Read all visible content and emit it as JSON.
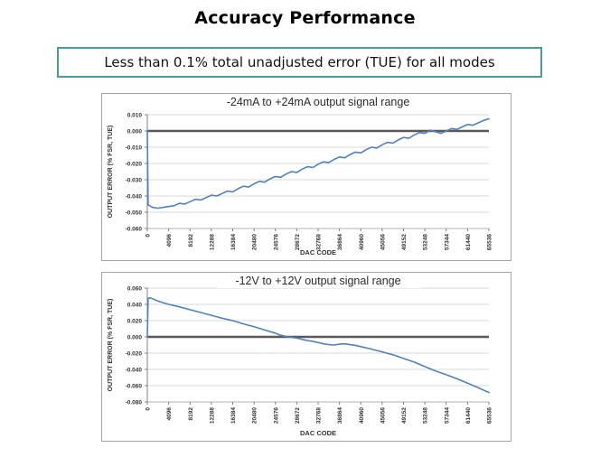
{
  "header": {
    "title": "Accuracy Performance"
  },
  "banner": {
    "text": "Less than 0.1% total unadjusted error (TUE) for all modes",
    "border_color": "#4a9c94"
  },
  "colors": {
    "series_blue": "#4f81bd",
    "zero_line": "#595959",
    "gridline": "#d9d9d9",
    "chart_border": "#a6a6a6",
    "tick_text": "#333333"
  },
  "chart_data": [
    {
      "type": "line",
      "title": "-24mA to +24mA output signal range",
      "xlabel": "DAC CODE",
      "ylabel": "OUTPUT ERROR (% FSR, TUE)",
      "xlim": [
        0,
        65536
      ],
      "ylim": [
        -0.06,
        0.01
      ],
      "ytick_step": 0.01,
      "xticks": [
        0,
        4096,
        8192,
        12288,
        16384,
        20480,
        24576,
        28672,
        32768,
        36864,
        40960,
        45056,
        49152,
        53248,
        57344,
        61440,
        65536
      ],
      "grid": "horizontal",
      "legend": "none",
      "zero_line": true,
      "line_color": "#4f81bd",
      "points": [
        [
          0,
          0.0
        ],
        [
          150,
          -0.0455
        ],
        [
          1024,
          -0.047
        ],
        [
          2048,
          -0.0475
        ],
        [
          3072,
          -0.047
        ],
        [
          4096,
          -0.0465
        ],
        [
          5120,
          -0.046
        ],
        [
          6144,
          -0.0445
        ],
        [
          7168,
          -0.045
        ],
        [
          8192,
          -0.0435
        ],
        [
          9216,
          -0.042
        ],
        [
          10240,
          -0.0425
        ],
        [
          11264,
          -0.041
        ],
        [
          12288,
          -0.0395
        ],
        [
          13312,
          -0.04
        ],
        [
          14336,
          -0.0385
        ],
        [
          15360,
          -0.037
        ],
        [
          16384,
          -0.0375
        ],
        [
          17408,
          -0.0355
        ],
        [
          18432,
          -0.034
        ],
        [
          19456,
          -0.0345
        ],
        [
          20480,
          -0.0325
        ],
        [
          21504,
          -0.031
        ],
        [
          22528,
          -0.0315
        ],
        [
          23552,
          -0.0295
        ],
        [
          24576,
          -0.028
        ],
        [
          25600,
          -0.0285
        ],
        [
          26624,
          -0.0265
        ],
        [
          27648,
          -0.025
        ],
        [
          28672,
          -0.0255
        ],
        [
          29696,
          -0.0235
        ],
        [
          30720,
          -0.022
        ],
        [
          31744,
          -0.0225
        ],
        [
          32768,
          -0.0205
        ],
        [
          33792,
          -0.019
        ],
        [
          34816,
          -0.0195
        ],
        [
          35840,
          -0.0175
        ],
        [
          36864,
          -0.016
        ],
        [
          37888,
          -0.0165
        ],
        [
          38912,
          -0.0145
        ],
        [
          39936,
          -0.013
        ],
        [
          40960,
          -0.0135
        ],
        [
          41984,
          -0.0115
        ],
        [
          43008,
          -0.01
        ],
        [
          44032,
          -0.0105
        ],
        [
          45056,
          -0.0085
        ],
        [
          46080,
          -0.007
        ],
        [
          47104,
          -0.0075
        ],
        [
          48128,
          -0.0055
        ],
        [
          49152,
          -0.004
        ],
        [
          50176,
          -0.0045
        ],
        [
          51200,
          -0.0025
        ],
        [
          52224,
          -0.001
        ],
        [
          53248,
          -0.0015
        ],
        [
          54272,
          0.0005
        ],
        [
          55296,
          -0.0005
        ],
        [
          56320,
          -0.0015
        ],
        [
          57344,
          0.0
        ],
        [
          58368,
          0.0015
        ],
        [
          59392,
          0.001
        ],
        [
          60416,
          0.0025
        ],
        [
          61440,
          0.004
        ],
        [
          62464,
          0.0035
        ],
        [
          63488,
          0.005
        ],
        [
          64512,
          0.0065
        ],
        [
          65536,
          0.0075
        ]
      ]
    },
    {
      "type": "line",
      "title": "-12V to +12V output signal range",
      "xlabel": "DAC CODE",
      "ylabel": "OUTPUT ERROR (% FSR, TUE)",
      "xlim": [
        0,
        65536
      ],
      "ylim": [
        -0.08,
        0.06
      ],
      "ytick_step": 0.02,
      "xticks": [
        0,
        4096,
        8192,
        12288,
        16384,
        20480,
        24576,
        28672,
        32768,
        36864,
        40960,
        45056,
        49152,
        53248,
        57344,
        61440,
        65536
      ],
      "grid": "horizontal",
      "legend": "none",
      "zero_line": true,
      "line_color": "#4f81bd",
      "points": [
        [
          0,
          0.0
        ],
        [
          150,
          0.0475
        ],
        [
          600,
          0.048
        ],
        [
          2048,
          0.044
        ],
        [
          4096,
          0.04
        ],
        [
          6144,
          0.037
        ],
        [
          8192,
          0.0335
        ],
        [
          10240,
          0.03
        ],
        [
          12288,
          0.0265
        ],
        [
          14336,
          0.023
        ],
        [
          16384,
          0.02
        ],
        [
          18432,
          0.016
        ],
        [
          20480,
          0.0125
        ],
        [
          22528,
          0.0085
        ],
        [
          24576,
          0.0045
        ],
        [
          25600,
          0.002
        ],
        [
          26624,
          0.0005
        ],
        [
          27648,
          -0.0005
        ],
        [
          28672,
          -0.0015
        ],
        [
          29696,
          -0.003
        ],
        [
          30720,
          -0.0045
        ],
        [
          31744,
          -0.0055
        ],
        [
          32768,
          -0.007
        ],
        [
          33792,
          -0.0085
        ],
        [
          34816,
          -0.0095
        ],
        [
          35840,
          -0.01
        ],
        [
          36864,
          -0.009
        ],
        [
          37888,
          -0.0085
        ],
        [
          38912,
          -0.0095
        ],
        [
          39936,
          -0.0105
        ],
        [
          40960,
          -0.012
        ],
        [
          43008,
          -0.015
        ],
        [
          45056,
          -0.0185
        ],
        [
          47104,
          -0.022
        ],
        [
          49152,
          -0.0265
        ],
        [
          51200,
          -0.031
        ],
        [
          53248,
          -0.0365
        ],
        [
          55296,
          -0.042
        ],
        [
          57344,
          -0.0465
        ],
        [
          59392,
          -0.0515
        ],
        [
          61440,
          -0.057
        ],
        [
          63488,
          -0.0625
        ],
        [
          64512,
          -0.0655
        ],
        [
          65536,
          -0.0685
        ]
      ]
    }
  ]
}
